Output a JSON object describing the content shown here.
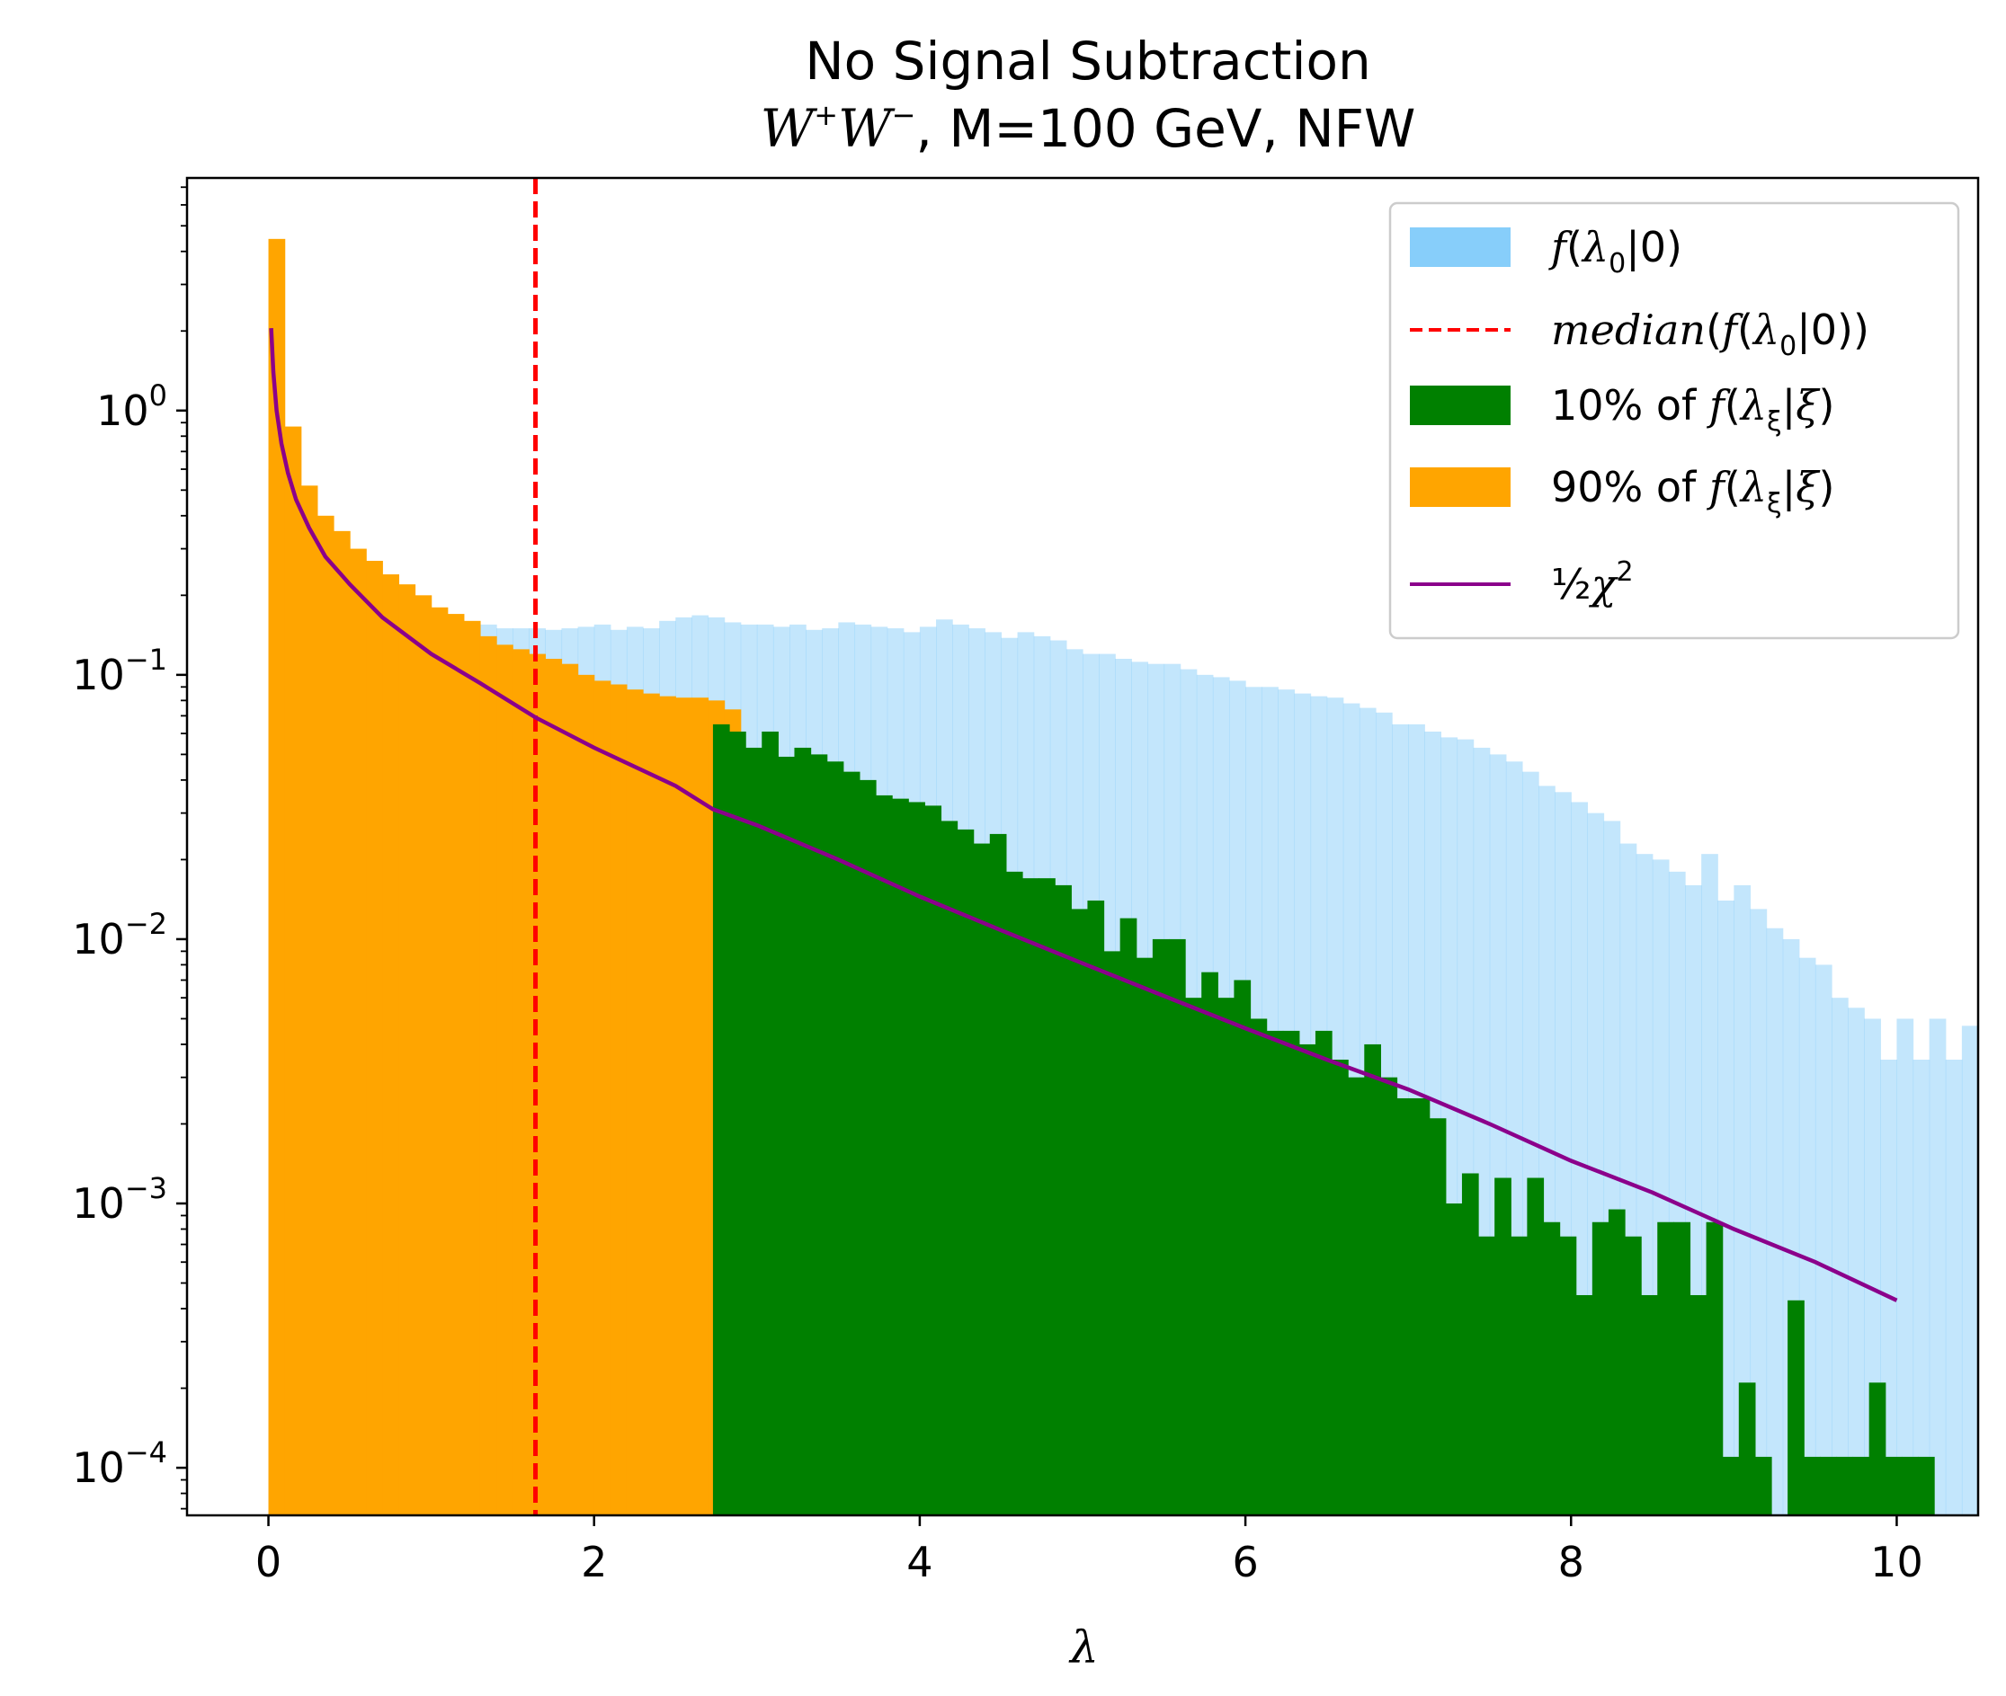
{
  "chart_data": {
    "type": "bar",
    "title": "No Signal Subtraction",
    "subtitle": {
      "main": "W",
      "sup1": "+",
      "main2": "W",
      "sup2": "−",
      "rest": ", M=100 GeV, NFW"
    },
    "xlabel": "λ",
    "ylabel": "",
    "xlim": [
      -0.5,
      10.5
    ],
    "ylim_log10": [
      -4.18,
      0.88
    ],
    "yscale": "log",
    "grid": false,
    "legend_position": "top-right",
    "x_ticks": [
      "0",
      "2",
      "4",
      "6",
      "8",
      "10"
    ],
    "y_ticks": [
      {
        "base": "10",
        "exp": "0",
        "log": 0
      },
      {
        "base": "10",
        "exp": "−1",
        "log": -1
      },
      {
        "base": "10",
        "exp": "−2",
        "log": -2
      },
      {
        "base": "10",
        "exp": "−3",
        "log": -3
      },
      {
        "base": "10",
        "exp": "−4",
        "log": -4
      }
    ],
    "bin_width": 0.1,
    "median_x": 1.64,
    "split_x": 2.73,
    "colors": {
      "background_hist": "#87cefa",
      "median_line": "#ff0000",
      "tail": "#008000",
      "bulk": "#ffa500",
      "chi2": "#8b008b"
    },
    "legend": [
      {
        "parts": [
          {
            "t": "f",
            "i": true
          },
          {
            "t": "(",
            "i": false
          },
          {
            "t": "λ",
            "i": true
          },
          {
            "t": "0",
            "sub": true
          },
          {
            "t": "|0)",
            "i": false
          }
        ]
      },
      {
        "parts": [
          {
            "t": "median",
            "i": true
          },
          {
            "t": "(",
            "i": false
          },
          {
            "t": "f",
            "i": true
          },
          {
            "t": "(",
            "i": false
          },
          {
            "t": "λ",
            "i": true
          },
          {
            "t": "0",
            "sub": true
          },
          {
            "t": "|0))",
            "i": false
          }
        ]
      },
      {
        "parts": [
          {
            "t": "10% of ",
            "i": false
          },
          {
            "t": "f",
            "i": true
          },
          {
            "t": "(",
            "i": false
          },
          {
            "t": "λ",
            "i": true
          },
          {
            "t": "ξ",
            "sub": true
          },
          {
            "t": "|",
            "i": false
          },
          {
            "t": "ξ",
            "i": true
          },
          {
            "t": ")",
            "i": false
          }
        ]
      },
      {
        "parts": [
          {
            "t": "90% of ",
            "i": false
          },
          {
            "t": "f",
            "i": true
          },
          {
            "t": "(",
            "i": false
          },
          {
            "t": "λ",
            "i": true
          },
          {
            "t": "ξ",
            "sub": true
          },
          {
            "t": "|",
            "i": false
          },
          {
            "t": "ξ",
            "i": true
          },
          {
            "t": ")",
            "i": false
          }
        ]
      },
      {
        "parts": [
          {
            "t": "½",
            "i": false
          },
          {
            "t": "χ",
            "i": true
          },
          {
            "t": "2",
            "sup": true
          }
        ]
      }
    ],
    "series": [
      {
        "name": "f(λ0|0)",
        "x_start": 0.0,
        "values": [
          0.6,
          0.42,
          0.33,
          0.29,
          0.25,
          0.22,
          0.2,
          0.19,
          0.18,
          0.172,
          0.165,
          0.16,
          0.155,
          0.155,
          0.15,
          0.15,
          0.15,
          0.148,
          0.15,
          0.152,
          0.155,
          0.148,
          0.152,
          0.15,
          0.16,
          0.165,
          0.168,
          0.165,
          0.158,
          0.155,
          0.155,
          0.152,
          0.155,
          0.148,
          0.15,
          0.158,
          0.155,
          0.152,
          0.15,
          0.145,
          0.152,
          0.162,
          0.155,
          0.15,
          0.145,
          0.138,
          0.145,
          0.14,
          0.135,
          0.125,
          0.12,
          0.12,
          0.115,
          0.112,
          0.11,
          0.11,
          0.105,
          0.1,
          0.098,
          0.095,
          0.09,
          0.09,
          0.088,
          0.085,
          0.083,
          0.082,
          0.078,
          0.075,
          0.072,
          0.065,
          0.065,
          0.061,
          0.058,
          0.057,
          0.053,
          0.05,
          0.047,
          0.043,
          0.038,
          0.036,
          0.033,
          0.03,
          0.028,
          0.023,
          0.021,
          0.02,
          0.018,
          0.016,
          0.021,
          0.014,
          0.016,
          0.013,
          0.011,
          0.01,
          0.0085,
          0.008,
          0.006,
          0.0055,
          0.005,
          0.0035,
          0.005,
          0.0035,
          0.005,
          0.0035,
          0.0047,
          0.003,
          0.003,
          0.0033,
          0.0022,
          0.002,
          0.0022
        ]
      },
      {
        "name": "90% of f(λξ|ξ)",
        "x_start": 0.0,
        "values": [
          4.46,
          0.87,
          0.52,
          0.4,
          0.35,
          0.3,
          0.27,
          0.24,
          0.22,
          0.2,
          0.18,
          0.17,
          0.16,
          0.14,
          0.13,
          0.125,
          0.12,
          0.115,
          0.11,
          0.1,
          0.095,
          0.092,
          0.088,
          0.085,
          0.083,
          0.082,
          0.082,
          0.08,
          0.074
        ]
      },
      {
        "name": "10% of f(λξ|ξ)",
        "x_start": 2.73,
        "values": [
          0.065,
          0.061,
          0.053,
          0.061,
          0.049,
          0.053,
          0.05,
          0.047,
          0.043,
          0.04,
          0.035,
          0.034,
          0.033,
          0.032,
          0.028,
          0.026,
          0.023,
          0.025,
          0.018,
          0.017,
          0.017,
          0.016,
          0.013,
          0.014,
          0.009,
          0.012,
          0.0085,
          0.01,
          0.01,
          0.006,
          0.0075,
          0.006,
          0.007,
          0.005,
          0.0045,
          0.0045,
          0.004,
          0.0045,
          0.0035,
          0.003,
          0.004,
          0.003,
          0.0025,
          0.0025,
          0.0021,
          0.001,
          0.0013,
          0.00075,
          0.00125,
          0.00075,
          0.00125,
          0.00085,
          0.00075,
          0.00045,
          0.00085,
          0.00095,
          0.00075,
          0.00045,
          0.00085,
          0.00085,
          0.00045,
          0.00085,
          0.00011,
          0.00021,
          0.00011,
          6.3e-05,
          0.00043,
          0.00011,
          0.00011,
          0.00011,
          0.00011,
          0.00021,
          0.00011,
          0.00011,
          0.00011,
          6.3e-05
        ]
      }
    ],
    "curve": {
      "name": "½χ²",
      "x": [
        0.0167,
        0.03,
        0.05,
        0.08,
        0.12,
        0.17,
        0.25,
        0.35,
        0.5,
        0.7,
        1.0,
        1.3,
        1.64,
        2.0,
        2.5,
        2.73,
        3.0,
        3.5,
        4.0,
        4.5,
        5.0,
        5.5,
        6.0,
        6.5,
        7.0,
        7.5,
        8.0,
        8.5,
        9.0,
        9.5,
        10.0
      ],
      "y": [
        2.05,
        1.4,
        1.0,
        0.75,
        0.58,
        0.46,
        0.36,
        0.28,
        0.22,
        0.165,
        0.12,
        0.093,
        0.069,
        0.053,
        0.038,
        0.031,
        0.027,
        0.02,
        0.0145,
        0.0108,
        0.0081,
        0.0061,
        0.0046,
        0.0035,
        0.0027,
        0.002,
        0.00145,
        0.0011,
        0.0008,
        0.0006,
        0.00043
      ]
    }
  }
}
